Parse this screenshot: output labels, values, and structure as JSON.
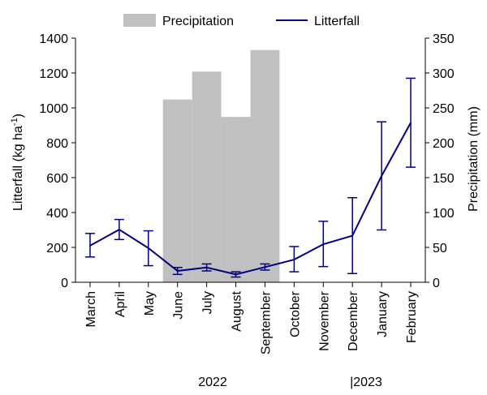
{
  "chart_data": {
    "type": "bar",
    "categories": [
      "March",
      "April",
      "May",
      "June",
      "July",
      "August",
      "September",
      "October",
      "November",
      "December",
      "January",
      "February"
    ],
    "year_labels": {
      "first": "2022",
      "second": "|2023"
    },
    "legend": {
      "precipitation": "Precipitation",
      "litterfall": "Litterfall"
    },
    "left_axis": {
      "label_main": "Litterfall (kg ha",
      "label_sup": "-1",
      "label_close": ")",
      "min": 0,
      "max": 1400,
      "ticks": [
        0,
        200,
        400,
        600,
        800,
        1000,
        1200,
        1400
      ]
    },
    "right_axis": {
      "label": "Precipitation (mm)",
      "min": 0,
      "max": 350,
      "ticks": [
        0,
        50,
        100,
        150,
        200,
        250,
        300,
        350
      ]
    },
    "series": [
      {
        "name": "Precipitation",
        "type": "bar",
        "axis": "right",
        "color": "#c0c0c0",
        "values": [
          null,
          null,
          null,
          262,
          302,
          237,
          333,
          null,
          null,
          null,
          null,
          null
        ]
      },
      {
        "name": "Litterfall",
        "type": "line",
        "axis": "left",
        "color": "#000080",
        "values": [
          210,
          302,
          196,
          65,
          85,
          45,
          87,
          130,
          218,
          267,
          610,
          915
        ],
        "error_low": [
          145,
          245,
          95,
          45,
          65,
          30,
          70,
          60,
          90,
          50,
          300,
          660
        ],
        "error_high": [
          280,
          360,
          295,
          85,
          105,
          60,
          105,
          205,
          350,
          485,
          920,
          1170
        ]
      }
    ]
  }
}
